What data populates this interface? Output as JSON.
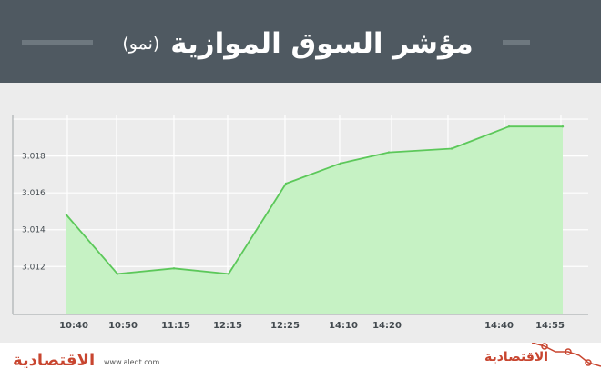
{
  "header": {
    "title": "مؤشر السوق الموازية",
    "subtitle": "(نمو)"
  },
  "footer": {
    "brand_left": "الاقتصادية",
    "url": "www.aleqt.com",
    "brand_right": "الاقتصادية"
  },
  "colors": {
    "header_bg": "#4f5961",
    "plot_bg": "#ececec",
    "line": "#5cc85a",
    "fill": "#c6f2c4",
    "accent": "#c8452f"
  },
  "chart_data": {
    "type": "area",
    "title": "مؤشر السوق الموازية (نمو)",
    "categories": [
      "10:40",
      "10:50",
      "11:15",
      "12:15",
      "12:25",
      "14:10",
      "14:20",
      "14:40",
      "14:55"
    ],
    "series": [
      {
        "x": [
          "10:40",
          "10:50",
          "11:15",
          "12:15",
          "12:25",
          "14:10",
          "14:20",
          "",
          "14:40",
          "14:55"
        ],
        "values": [
          3.0148,
          3.0116,
          3.0119,
          3.0116,
          3.0165,
          3.0176,
          3.0182,
          3.0184,
          3.0196,
          3.0196
        ]
      }
    ],
    "yticks": [
      "3.012",
      "3.014",
      "3.016",
      "3.018"
    ],
    "ylim": [
      3.0094,
      3.0202
    ],
    "grid": true
  }
}
